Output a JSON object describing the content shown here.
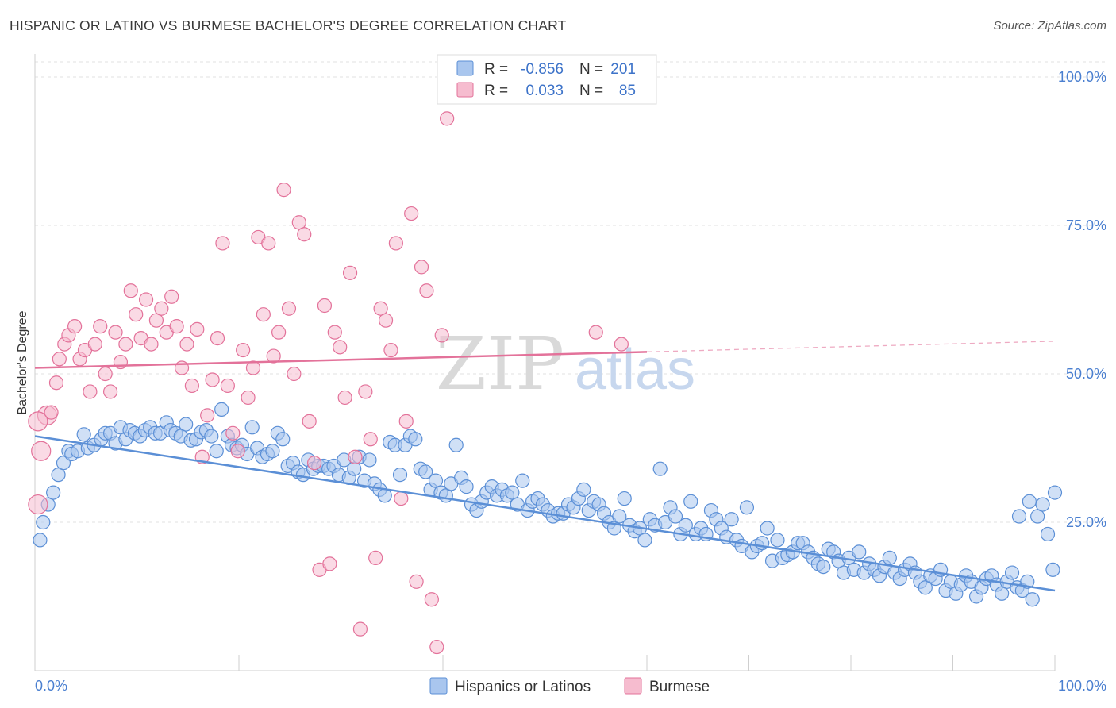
{
  "chart_data": {
    "type": "scatter",
    "title": "HISPANIC OR LATINO VS BURMESE BACHELOR'S DEGREE CORRELATION CHART",
    "source": "Source: ZipAtlas.com",
    "xlabel": "",
    "ylabel": "Bachelor's Degree",
    "xlim": [
      0,
      100
    ],
    "ylim": [
      0,
      100
    ],
    "x_tick_labels": [
      "0.0%",
      "100.0%"
    ],
    "y_tick_values": [
      25,
      50,
      75,
      100
    ],
    "y_tick_labels": [
      "25.0%",
      "50.0%",
      "75.0%",
      "100.0%"
    ],
    "watermark": {
      "zip": "ZIP",
      "atlas": "atlas"
    },
    "stats": [
      {
        "series": "Hispanics or Latinos",
        "r_label": "R =",
        "r_value": "-0.856",
        "n_label": "N =",
        "n_value": "201"
      },
      {
        "series": "Burmese",
        "r_label": "R =",
        "r_value": "0.033",
        "n_label": "N =",
        "n_value": "85"
      }
    ],
    "legend": [
      "Hispanics or Latinos",
      "Burmese"
    ],
    "series": [
      {
        "name": "Hispanics or Latinos",
        "color": "#5b8fd6",
        "fill": "#a9c6ee",
        "trend": {
          "x0": 0,
          "y0": 39.5,
          "x1": 100,
          "y1": 13.5,
          "solid_to": 100
        },
        "points": [
          [
            0.5,
            22
          ],
          [
            0.8,
            25
          ],
          [
            1.3,
            28
          ],
          [
            1.8,
            30
          ],
          [
            2.3,
            33
          ],
          [
            2.8,
            35
          ],
          [
            3.3,
            37
          ],
          [
            3.6,
            36.5
          ],
          [
            4.2,
            37
          ],
          [
            4.8,
            39.8
          ],
          [
            5.2,
            37.5
          ],
          [
            5.8,
            38
          ],
          [
            6.5,
            39
          ],
          [
            6.9,
            40
          ],
          [
            7.4,
            40
          ],
          [
            7.9,
            38.3
          ],
          [
            8.4,
            41
          ],
          [
            8.9,
            39
          ],
          [
            9.3,
            40.5
          ],
          [
            9.8,
            40
          ],
          [
            10.3,
            39.5
          ],
          [
            10.8,
            40.5
          ],
          [
            11.3,
            41
          ],
          [
            11.8,
            40
          ],
          [
            12.3,
            40
          ],
          [
            12.9,
            41.8
          ],
          [
            13.3,
            40.5
          ],
          [
            13.8,
            40
          ],
          [
            14.3,
            39.5
          ],
          [
            14.8,
            41.5
          ],
          [
            15.3,
            38.8
          ],
          [
            15.8,
            39
          ],
          [
            16.3,
            40.2
          ],
          [
            16.8,
            40.5
          ],
          [
            17.3,
            39.5
          ],
          [
            17.8,
            37
          ],
          [
            18.3,
            44
          ],
          [
            18.9,
            39.5
          ],
          [
            19.3,
            38
          ],
          [
            19.8,
            37.5
          ],
          [
            20.3,
            38
          ],
          [
            20.8,
            36.5
          ],
          [
            21.3,
            41
          ],
          [
            21.8,
            37.5
          ],
          [
            22.3,
            36
          ],
          [
            22.8,
            36.5
          ],
          [
            23.3,
            37
          ],
          [
            23.8,
            40
          ],
          [
            24.3,
            39
          ],
          [
            24.8,
            34.5
          ],
          [
            25.3,
            35
          ],
          [
            25.8,
            33.5
          ],
          [
            26.3,
            33
          ],
          [
            26.8,
            35.5
          ],
          [
            27.3,
            34
          ],
          [
            27.8,
            34.5
          ],
          [
            28.3,
            34.5
          ],
          [
            28.8,
            34
          ],
          [
            29.3,
            34.5
          ],
          [
            29.8,
            33
          ],
          [
            30.3,
            35.5
          ],
          [
            30.8,
            32.5
          ],
          [
            31.3,
            34
          ],
          [
            31.8,
            36
          ],
          [
            32.3,
            32
          ],
          [
            32.8,
            35.5
          ],
          [
            33.3,
            31.5
          ],
          [
            33.8,
            30.5
          ],
          [
            34.3,
            29.5
          ],
          [
            34.8,
            38.5
          ],
          [
            35.3,
            38
          ],
          [
            35.8,
            33
          ],
          [
            36.3,
            38
          ],
          [
            36.8,
            39.5
          ],
          [
            37.3,
            39
          ],
          [
            37.8,
            34
          ],
          [
            38.3,
            33.5
          ],
          [
            38.8,
            30.5
          ],
          [
            39.3,
            32
          ],
          [
            39.8,
            30
          ],
          [
            40.3,
            29.5
          ],
          [
            40.8,
            31.5
          ],
          [
            41.3,
            38
          ],
          [
            41.8,
            32.5
          ],
          [
            42.3,
            31
          ],
          [
            42.8,
            28
          ],
          [
            43.3,
            27
          ],
          [
            43.8,
            28.5
          ],
          [
            44.3,
            30
          ],
          [
            44.8,
            31
          ],
          [
            45.3,
            29.5
          ],
          [
            45.8,
            30.5
          ],
          [
            46.3,
            29.5
          ],
          [
            46.8,
            30
          ],
          [
            47.3,
            28
          ],
          [
            47.8,
            32
          ],
          [
            48.3,
            27
          ],
          [
            48.8,
            28.5
          ],
          [
            49.3,
            29
          ],
          [
            49.8,
            28
          ],
          [
            50.3,
            27
          ],
          [
            50.8,
            26
          ],
          [
            51.3,
            26.5
          ],
          [
            51.8,
            26.5
          ],
          [
            52.3,
            28
          ],
          [
            52.8,
            27.5
          ],
          [
            53.3,
            29
          ],
          [
            53.8,
            30.5
          ],
          [
            54.3,
            27
          ],
          [
            54.8,
            28.5
          ],
          [
            55.3,
            28
          ],
          [
            55.8,
            26.5
          ],
          [
            56.3,
            25
          ],
          [
            56.8,
            24
          ],
          [
            57.3,
            26
          ],
          [
            57.8,
            29
          ],
          [
            58.3,
            24.5
          ],
          [
            58.8,
            23.5
          ],
          [
            59.3,
            24
          ],
          [
            59.8,
            22
          ],
          [
            60.3,
            25.5
          ],
          [
            60.8,
            24.5
          ],
          [
            61.3,
            34
          ],
          [
            61.8,
            25
          ],
          [
            62.3,
            27.5
          ],
          [
            62.8,
            26
          ],
          [
            63.3,
            23
          ],
          [
            63.8,
            24.5
          ],
          [
            64.3,
            28.5
          ],
          [
            64.8,
            23
          ],
          [
            65.3,
            24
          ],
          [
            65.8,
            23
          ],
          [
            66.3,
            27
          ],
          [
            66.8,
            25.5
          ],
          [
            67.3,
            24
          ],
          [
            67.8,
            22.5
          ],
          [
            68.3,
            25.5
          ],
          [
            68.8,
            22
          ],
          [
            69.3,
            21
          ],
          [
            69.8,
            27.5
          ],
          [
            70.3,
            20
          ],
          [
            70.8,
            21
          ],
          [
            71.3,
            21.5
          ],
          [
            71.8,
            24
          ],
          [
            72.3,
            18.5
          ],
          [
            72.8,
            22
          ],
          [
            73.3,
            19
          ],
          [
            73.8,
            19.5
          ],
          [
            74.3,
            20
          ],
          [
            74.8,
            21.5
          ],
          [
            75.3,
            21.5
          ],
          [
            75.8,
            20
          ],
          [
            76.3,
            19
          ],
          [
            76.8,
            18
          ],
          [
            77.3,
            17.5
          ],
          [
            77.8,
            20.5
          ],
          [
            78.3,
            20
          ],
          [
            78.8,
            18.5
          ],
          [
            79.3,
            16.5
          ],
          [
            79.8,
            19
          ],
          [
            80.3,
            17
          ],
          [
            80.8,
            20
          ],
          [
            81.3,
            16.5
          ],
          [
            81.8,
            18
          ],
          [
            82.3,
            17
          ],
          [
            82.8,
            16
          ],
          [
            83.3,
            17.5
          ],
          [
            83.8,
            19
          ],
          [
            84.3,
            16.5
          ],
          [
            84.8,
            15.5
          ],
          [
            85.3,
            17
          ],
          [
            85.8,
            18
          ],
          [
            86.3,
            16.5
          ],
          [
            86.8,
            15
          ],
          [
            87.3,
            14
          ],
          [
            87.8,
            16
          ],
          [
            88.3,
            15.5
          ],
          [
            88.8,
            17
          ],
          [
            89.3,
            13.5
          ],
          [
            89.8,
            15
          ],
          [
            90.3,
            13
          ],
          [
            90.8,
            14.5
          ],
          [
            91.3,
            16
          ],
          [
            91.8,
            15
          ],
          [
            92.3,
            12.5
          ],
          [
            92.8,
            14
          ],
          [
            93.3,
            15.5
          ],
          [
            93.8,
            16
          ],
          [
            94.3,
            14.5
          ],
          [
            94.8,
            13
          ],
          [
            95.3,
            15
          ],
          [
            95.8,
            16.5
          ],
          [
            96.3,
            14
          ],
          [
            96.8,
            13.5
          ],
          [
            97.3,
            15
          ],
          [
            97.8,
            12
          ],
          [
            98.3,
            26
          ],
          [
            98.8,
            28
          ],
          [
            99.3,
            23
          ],
          [
            99.8,
            17
          ],
          [
            100,
            30
          ],
          [
            97.5,
            28.5
          ],
          [
            96.5,
            26
          ]
        ]
      },
      {
        "name": "Burmese",
        "color": "#e3729a",
        "fill": "#f6bccf",
        "trend": {
          "x0": 0,
          "y0": 51,
          "x1": 100,
          "y1": 55.5,
          "solid_to": 60
        },
        "points": [
          [
            0.3,
            28
          ],
          [
            0.6,
            37
          ],
          [
            1.2,
            43
          ],
          [
            1.6,
            43.5
          ],
          [
            2.1,
            48.5
          ],
          [
            2.4,
            52.5
          ],
          [
            2.9,
            55
          ],
          [
            3.3,
            56.5
          ],
          [
            3.9,
            58
          ],
          [
            4.4,
            52.5
          ],
          [
            4.9,
            54
          ],
          [
            5.4,
            47
          ],
          [
            5.9,
            55
          ],
          [
            6.4,
            58
          ],
          [
            6.9,
            50
          ],
          [
            7.4,
            47
          ],
          [
            7.9,
            57
          ],
          [
            8.4,
            52
          ],
          [
            8.9,
            55
          ],
          [
            9.4,
            64
          ],
          [
            9.9,
            60
          ],
          [
            10.4,
            56
          ],
          [
            10.9,
            62.5
          ],
          [
            11.4,
            55
          ],
          [
            11.9,
            59
          ],
          [
            12.4,
            61
          ],
          [
            12.9,
            57
          ],
          [
            13.4,
            63
          ],
          [
            13.9,
            58
          ],
          [
            14.4,
            51
          ],
          [
            14.9,
            55
          ],
          [
            15.4,
            48
          ],
          [
            15.9,
            57.5
          ],
          [
            16.4,
            36
          ],
          [
            16.9,
            43
          ],
          [
            17.4,
            49
          ],
          [
            17.9,
            56
          ],
          [
            18.4,
            72
          ],
          [
            18.9,
            48
          ],
          [
            19.4,
            40
          ],
          [
            19.9,
            37
          ],
          [
            20.4,
            54
          ],
          [
            20.9,
            46
          ],
          [
            21.4,
            51
          ],
          [
            21.9,
            73
          ],
          [
            22.4,
            60
          ],
          [
            22.9,
            72
          ],
          [
            23.4,
            53
          ],
          [
            23.9,
            57
          ],
          [
            24.4,
            81
          ],
          [
            24.9,
            61
          ],
          [
            25.4,
            50
          ],
          [
            25.9,
            75.5
          ],
          [
            26.4,
            73.5
          ],
          [
            26.9,
            42
          ],
          [
            27.4,
            35
          ],
          [
            27.9,
            17
          ],
          [
            28.4,
            61.5
          ],
          [
            28.9,
            18
          ],
          [
            29.4,
            57
          ],
          [
            29.9,
            54.5
          ],
          [
            30.4,
            46
          ],
          [
            30.9,
            67
          ],
          [
            31.4,
            36
          ],
          [
            31.9,
            7
          ],
          [
            32.4,
            47
          ],
          [
            32.9,
            39
          ],
          [
            33.4,
            19
          ],
          [
            33.9,
            61
          ],
          [
            34.4,
            59
          ],
          [
            34.9,
            54
          ],
          [
            35.4,
            72
          ],
          [
            35.9,
            29
          ],
          [
            36.4,
            42
          ],
          [
            36.9,
            77
          ],
          [
            37.4,
            15
          ],
          [
            37.9,
            68
          ],
          [
            38.4,
            64
          ],
          [
            38.9,
            12
          ],
          [
            39.4,
            4
          ],
          [
            39.9,
            56.5
          ],
          [
            40.4,
            93
          ],
          [
            55,
            57
          ],
          [
            57.5,
            55
          ],
          [
            0.3,
            42
          ]
        ]
      }
    ]
  }
}
